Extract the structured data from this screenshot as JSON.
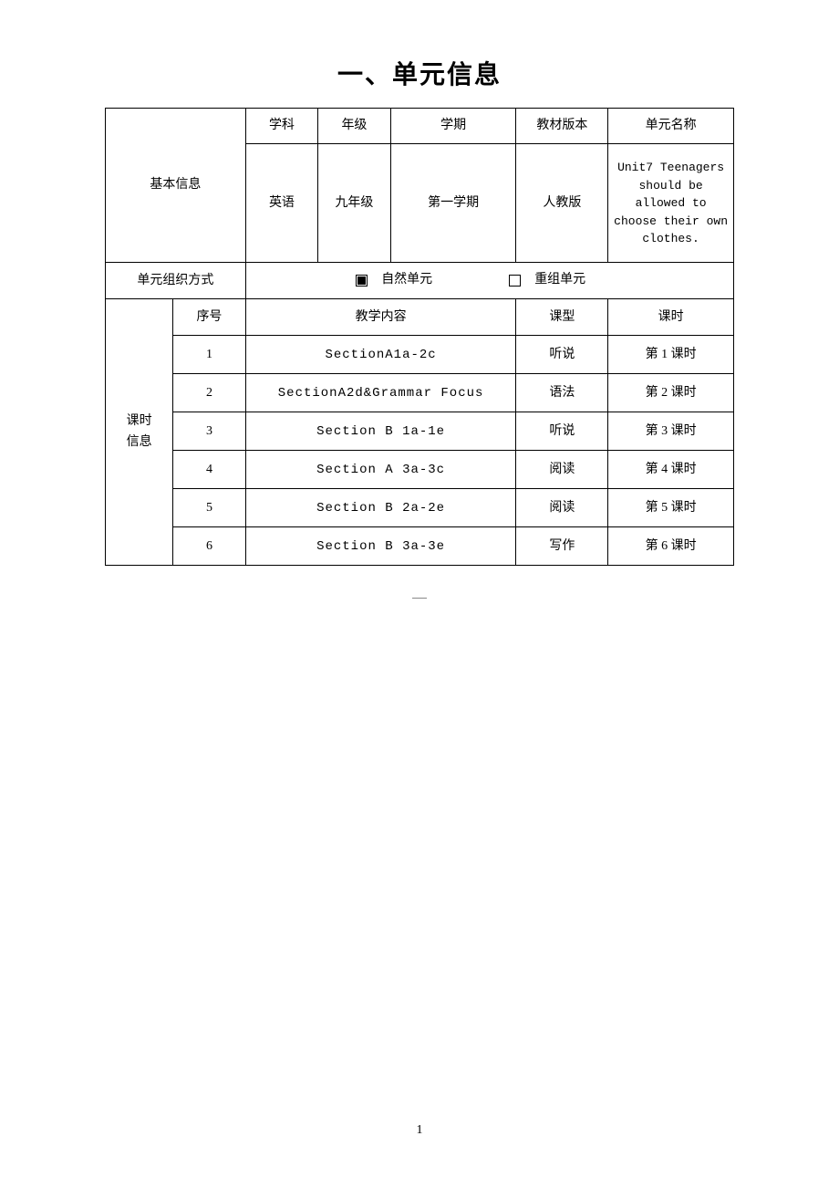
{
  "title": "一、单元信息",
  "basicInfo": {
    "label": "基本信息",
    "headers": {
      "subject": "学科",
      "grade": "年级",
      "semester": "学期",
      "version": "教材版本",
      "unitName": "单元名称"
    },
    "values": {
      "subject": "英语",
      "grade": "九年级",
      "semester": "第一学期",
      "version": "人教版",
      "unitName": "Unit7 Teenagers should be allowed to choose their own clothes."
    }
  },
  "organization": {
    "label": "单元组织方式",
    "option1": "自然单元",
    "option1Checked": true,
    "option2": "重组单元",
    "option2Checked": false
  },
  "lessonInfo": {
    "label": "课时\n信息",
    "headers": {
      "seq": "序号",
      "content": "教学内容",
      "type": "课型",
      "period": "课时"
    },
    "rows": [
      {
        "seq": "1",
        "content": "SectionA1a-2c",
        "type": "听说",
        "period": "第 1 课时"
      },
      {
        "seq": "2",
        "content": "SectionA2d&Grammar Focus",
        "type": "语法",
        "period": "第 2 课时"
      },
      {
        "seq": "3",
        "content": "Section B 1a-1e",
        "type": "听说",
        "period": "第 3 课时"
      },
      {
        "seq": "4",
        "content": "Section A 3a-3c",
        "type": "阅读",
        "period": "第 4 课时"
      },
      {
        "seq": "5",
        "content": "Section B 2a-2e",
        "type": "阅读",
        "period": "第 5 课时"
      },
      {
        "seq": "6",
        "content": "Section B 3a-3e",
        "type": "写作",
        "period": "第 6 课时"
      }
    ]
  },
  "pageNumber": "1"
}
